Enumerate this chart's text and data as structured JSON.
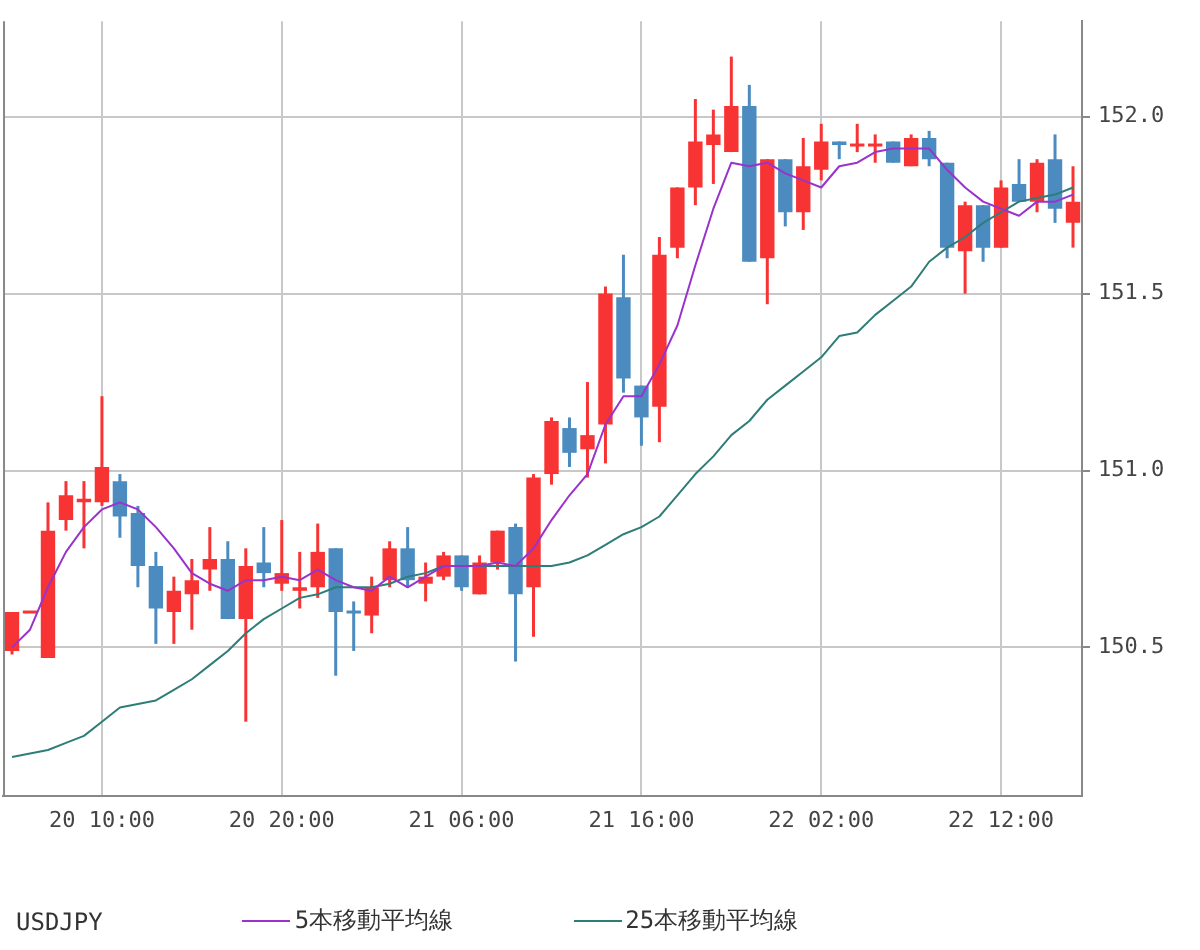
{
  "chart_data": {
    "type": "candlestick",
    "categories": [
      null,
      null,
      null,
      null,
      null,
      "20 10:00",
      null,
      null,
      null,
      null,
      null,
      null,
      null,
      null,
      null,
      "20 20:00",
      null,
      null,
      null,
      null,
      null,
      null,
      null,
      null,
      null,
      "21 06:00",
      null,
      null,
      null,
      null,
      null,
      null,
      null,
      null,
      null,
      "21 16:00",
      null,
      null,
      null,
      null,
      null,
      null,
      null,
      null,
      null,
      "22 02:00",
      null,
      null,
      null,
      null,
      null,
      null,
      null,
      null,
      null,
      "22 12:00",
      null,
      null,
      null,
      null
    ],
    "ohlc": [
      [
        150.49,
        150.6,
        150.48,
        150.6
      ],
      [
        150.6,
        150.6,
        150.6,
        150.6
      ],
      [
        150.47,
        150.91,
        150.47,
        150.83
      ],
      [
        150.86,
        150.97,
        150.83,
        150.93
      ],
      [
        150.91,
        150.97,
        150.78,
        150.92
      ],
      [
        150.91,
        151.21,
        150.9,
        151.01
      ],
      [
        150.97,
        150.99,
        150.81,
        150.87
      ],
      [
        150.88,
        150.9,
        150.67,
        150.73
      ],
      [
        150.73,
        150.77,
        150.51,
        150.61
      ],
      [
        150.6,
        150.7,
        150.51,
        150.66
      ],
      [
        150.65,
        150.75,
        150.55,
        150.69
      ],
      [
        150.72,
        150.84,
        150.66,
        150.75
      ],
      [
        150.75,
        150.8,
        150.58,
        150.58
      ],
      [
        150.58,
        150.78,
        150.29,
        150.73
      ],
      [
        150.74,
        150.84,
        150.67,
        150.71
      ],
      [
        150.68,
        150.86,
        150.66,
        150.71
      ],
      [
        150.66,
        150.77,
        150.61,
        150.67
      ],
      [
        150.67,
        150.85,
        150.64,
        150.77
      ],
      [
        150.78,
        150.78,
        150.42,
        150.6
      ],
      [
        150.6,
        150.63,
        150.49,
        150.6
      ],
      [
        150.59,
        150.7,
        150.54,
        150.67
      ],
      [
        150.69,
        150.8,
        150.67,
        150.78
      ],
      [
        150.78,
        150.84,
        150.67,
        150.69
      ],
      [
        150.68,
        150.74,
        150.63,
        150.7
      ],
      [
        150.7,
        150.77,
        150.69,
        150.76
      ],
      [
        150.76,
        150.76,
        150.66,
        150.67
      ],
      [
        150.65,
        150.76,
        150.65,
        150.74
      ],
      [
        150.74,
        150.83,
        150.72,
        150.83
      ],
      [
        150.84,
        150.85,
        150.46,
        150.65
      ],
      [
        150.67,
        150.99,
        150.53,
        150.98
      ],
      [
        150.99,
        151.15,
        150.96,
        151.14
      ],
      [
        151.12,
        151.15,
        151.01,
        151.05
      ],
      [
        151.06,
        151.25,
        150.98,
        151.1
      ],
      [
        151.13,
        151.52,
        151.02,
        151.5
      ],
      [
        151.49,
        151.61,
        151.22,
        151.26
      ],
      [
        151.24,
        151.24,
        151.07,
        151.15
      ],
      [
        151.18,
        151.66,
        151.08,
        151.61
      ],
      [
        151.63,
        151.8,
        151.6,
        151.8
      ],
      [
        151.8,
        152.05,
        151.75,
        151.93
      ],
      [
        151.92,
        152.02,
        151.81,
        151.95
      ],
      [
        151.9,
        152.17,
        151.9,
        152.03
      ],
      [
        152.03,
        152.09,
        151.59,
        151.59
      ],
      [
        151.6,
        151.88,
        151.47,
        151.88
      ],
      [
        151.88,
        151.88,
        151.69,
        151.73
      ],
      [
        151.73,
        151.94,
        151.68,
        151.86
      ],
      [
        151.85,
        151.98,
        151.82,
        151.93
      ],
      [
        151.93,
        151.93,
        151.88,
        151.92
      ],
      [
        151.92,
        151.98,
        151.9,
        151.92
      ],
      [
        151.92,
        151.95,
        151.87,
        151.92
      ],
      [
        151.93,
        151.93,
        151.87,
        151.87
      ],
      [
        151.86,
        151.95,
        151.86,
        151.94
      ],
      [
        151.94,
        151.96,
        151.86,
        151.88
      ],
      [
        151.87,
        151.87,
        151.6,
        151.63
      ],
      [
        151.62,
        151.76,
        151.5,
        151.75
      ],
      [
        151.75,
        151.75,
        151.59,
        151.63
      ],
      [
        151.63,
        151.82,
        151.63,
        151.8
      ],
      [
        151.81,
        151.88,
        151.76,
        151.76
      ],
      [
        151.76,
        151.88,
        151.73,
        151.87
      ],
      [
        151.88,
        151.95,
        151.7,
        151.74
      ],
      [
        151.7,
        151.86,
        151.63,
        151.76
      ]
    ],
    "colors": [
      "#f83333",
      "#f83333",
      "#f83333",
      "#f83333",
      "#f83333",
      "#f83333",
      "#4b8bbf",
      "#4b8bbf",
      "#4b8bbf",
      "#f83333",
      "#f83333",
      "#f83333",
      "#4b8bbf",
      "#f83333",
      "#4b8bbf",
      "#f83333",
      "#f83333",
      "#f83333",
      "#4b8bbf",
      "#4b8bbf",
      "#f83333",
      "#f83333",
      "#4b8bbf",
      "#f83333",
      "#f83333",
      "#4b8bbf",
      "#f83333",
      "#f83333",
      "#4b8bbf",
      "#f83333",
      "#f83333",
      "#4b8bbf",
      "#f83333",
      "#f83333",
      "#4b8bbf",
      "#4b8bbf",
      "#f83333",
      "#f83333",
      "#f83333",
      "#f83333",
      "#f83333",
      "#4b8bbf",
      "#f83333",
      "#4b8bbf",
      "#f83333",
      "#f83333",
      "#4b8bbf",
      "#f83333",
      "#f83333",
      "#4b8bbf",
      "#f83333",
      "#4b8bbf",
      "#4b8bbf",
      "#f83333",
      "#4b8bbf",
      "#f83333",
      "#4b8bbf",
      "#f83333",
      "#4b8bbf",
      "#f83333"
    ],
    "series": [
      {
        "name": "5本移動平均線",
        "type": "line",
        "color": "#9933cc",
        "values": [
          150.5,
          150.55,
          150.67,
          150.77,
          150.84,
          150.89,
          150.91,
          150.89,
          150.84,
          150.78,
          150.71,
          150.68,
          150.66,
          150.69,
          150.69,
          150.7,
          150.69,
          150.72,
          150.69,
          150.67,
          150.66,
          150.7,
          150.67,
          150.7,
          150.73,
          150.73,
          150.73,
          150.74,
          150.73,
          150.78,
          150.86,
          150.93,
          150.99,
          151.13,
          151.21,
          151.21,
          151.3,
          151.41,
          151.58,
          151.74,
          151.87,
          151.86,
          151.87,
          151.84,
          151.82,
          151.8,
          151.86,
          151.87,
          151.9,
          151.91,
          151.91,
          151.91,
          151.85,
          151.8,
          151.76,
          151.74,
          151.72,
          151.76,
          151.76,
          151.78
        ]
      },
      {
        "name": "25本移動平均線",
        "type": "line",
        "color": "#2e7d78",
        "values": [
          150.19,
          150.2,
          150.21,
          150.23,
          150.25,
          150.29,
          150.33,
          150.34,
          150.35,
          150.38,
          150.41,
          150.45,
          150.49,
          150.54,
          150.58,
          150.61,
          150.64,
          150.65,
          150.67,
          150.67,
          150.67,
          150.68,
          150.7,
          150.71,
          150.73,
          150.73,
          150.73,
          150.73,
          150.73,
          150.73,
          150.73,
          150.74,
          150.76,
          150.79,
          150.82,
          150.84,
          150.87,
          150.93,
          150.99,
          151.04,
          151.1,
          151.14,
          151.2,
          151.24,
          151.28,
          151.32,
          151.38,
          151.39,
          151.44,
          151.48,
          151.52,
          151.59,
          151.63,
          151.66,
          151.7,
          151.73,
          151.76,
          151.77,
          151.78,
          151.8
        ]
      }
    ],
    "ylim": [
      150.08,
      152.27
    ],
    "yticks": [
      {
        "value": 150.5,
        "label": "150.5"
      },
      {
        "value": 151,
        "label": "151.0"
      },
      {
        "value": 151.5,
        "label": "151.5"
      },
      {
        "value": 152,
        "label": "152.0"
      }
    ],
    "grid": true,
    "legend": "bottom",
    "legend_title": "USDJPY",
    "marker": "none"
  }
}
